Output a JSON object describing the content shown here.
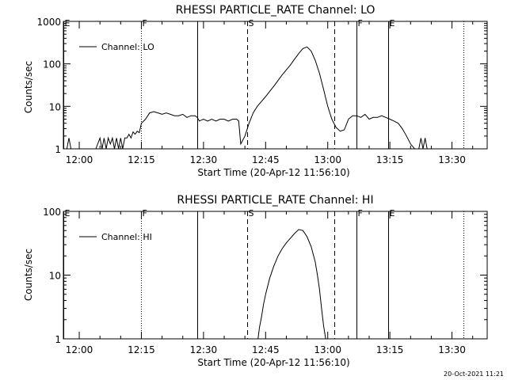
{
  "timestamp": "20-Oct-2021 11:21",
  "chart_data": [
    {
      "type": "line",
      "title": "RHESSI PARTICLE_RATE Channel: LO",
      "xlabel": "Start Time (20-Apr-12 11:56:10)",
      "ylabel": "Counts/sec",
      "y_scale": "log",
      "ylim": [
        1,
        1000
      ],
      "xlim": [
        "11:56:10",
        "13:38:30"
      ],
      "x_ticks": [
        "12:00",
        "12:15",
        "12:30",
        "12:45",
        "13:00",
        "13:15",
        "13:30"
      ],
      "y_ticks": [
        "1",
        "10",
        "100",
        "1000"
      ],
      "legend": {
        "position": "top-left",
        "entries": [
          "Channel: LO"
        ]
      },
      "markers": [
        {
          "label": "E",
          "time": "11:56:10",
          "style": "solid"
        },
        {
          "label": "F",
          "time": "12:14:50",
          "style": "dotted"
        },
        {
          "label": "",
          "time": "12:28:30",
          "style": "solid"
        },
        {
          "label": "S",
          "time": "12:40:30",
          "style": "dashed"
        },
        {
          "label": "",
          "time": "13:01:30",
          "style": "dashed"
        },
        {
          "label": "F",
          "time": "13:07:00",
          "style": "solid"
        },
        {
          "label": "E",
          "time": "13:14:30",
          "style": "solid"
        },
        {
          "label": "",
          "time": "13:32:40",
          "style": "dotted"
        }
      ],
      "series": [
        {
          "name": "Channel: LO",
          "x": [
            "11:56:10",
            "11:57:00",
            "11:57:30",
            "11:58:00",
            "11:59:00",
            "11:59:30",
            "12:00:00",
            "12:01:00",
            "12:02:00",
            "12:02:30",
            "12:03:00",
            "12:03:30",
            "12:04:00",
            "12:05:00",
            "12:05:30",
            "12:06:00",
            "12:06:30",
            "12:07:00",
            "12:07:30",
            "12:08:00",
            "12:08:30",
            "12:09:00",
            "12:09:30",
            "12:10:00",
            "12:10:30",
            "12:11:00",
            "12:11:30",
            "12:12:00",
            "12:12:30",
            "12:13:00",
            "12:13:30",
            "12:14:00",
            "12:14:30",
            "12:15:00",
            "12:16:00",
            "12:17:00",
            "12:18:00",
            "12:19:00",
            "12:20:00",
            "12:21:00",
            "12:22:00",
            "12:23:00",
            "12:24:00",
            "12:25:00",
            "12:26:00",
            "12:27:00",
            "12:28:00",
            "12:28:30",
            "12:29:00",
            "12:30:00",
            "12:31:00",
            "12:32:00",
            "12:33:00",
            "12:34:00",
            "12:35:00",
            "12:36:00",
            "12:37:00",
            "12:38:00",
            "12:38:30",
            "12:39:00",
            "12:40:00",
            "12:41:00",
            "12:42:00",
            "12:43:00",
            "12:45:00",
            "12:47:00",
            "12:49:00",
            "12:51:00",
            "12:52:00",
            "12:53:00",
            "12:54:00",
            "12:55:00",
            "12:56:00",
            "12:57:00",
            "12:58:00",
            "12:59:00",
            "13:00:00",
            "13:01:00",
            "13:02:00",
            "13:03:00",
            "13:04:00",
            "13:05:00",
            "13:06:00",
            "13:07:00",
            "13:08:00",
            "13:09:00",
            "13:10:00",
            "13:11:00",
            "13:12:00",
            "13:13:00",
            "13:14:00",
            "13:15:00",
            "13:16:00",
            "13:17:00",
            "13:18:00",
            "13:19:00",
            "13:20:00",
            "13:21:00",
            "13:21:30",
            "13:22:00",
            "13:22:30",
            "13:23:00",
            "13:23:30",
            "13:24:00"
          ],
          "values": [
            1,
            1,
            1.8,
            1,
            1,
            1,
            1,
            1,
            1,
            1,
            1,
            1,
            1,
            1.8,
            1,
            1.8,
            1,
            1.8,
            1.3,
            1.8,
            1,
            1.8,
            1,
            1.8,
            1,
            1.8,
            1.8,
            2.2,
            1.8,
            2.5,
            2.2,
            2.6,
            2.4,
            4,
            5,
            7,
            7.5,
            7,
            6.5,
            7,
            6.5,
            6,
            6,
            6.5,
            5.5,
            6,
            6,
            5.5,
            4.5,
            5,
            4.5,
            5,
            4.5,
            5,
            5,
            4.5,
            5,
            5,
            4.5,
            1.3,
            2,
            4,
            7,
            10,
            17,
            30,
            55,
            95,
            130,
            175,
            230,
            250,
            200,
            120,
            60,
            25,
            10,
            5,
            3.2,
            2.6,
            2.8,
            5,
            6,
            6,
            5.5,
            6.5,
            5,
            5.5,
            5.5,
            6,
            5.5,
            5,
            4.5,
            4,
            3,
            2,
            1.3,
            1,
            1,
            1,
            1.8,
            1,
            1.8,
            1
          ]
        }
      ]
    },
    {
      "type": "line",
      "title": "RHESSI PARTICLE_RATE Channel: HI",
      "xlabel": "Start Time (20-Apr-12 11:56:10)",
      "ylabel": "Counts/sec",
      "y_scale": "log",
      "ylim": [
        1,
        100
      ],
      "xlim": [
        "11:56:10",
        "13:38:30"
      ],
      "x_ticks": [
        "12:00",
        "12:15",
        "12:30",
        "12:45",
        "13:00",
        "13:15",
        "13:30"
      ],
      "y_ticks": [
        "1",
        "10",
        "100"
      ],
      "legend": {
        "position": "top-left",
        "entries": [
          "Channel: HI"
        ]
      },
      "markers": [
        {
          "label": "E",
          "time": "11:56:10",
          "style": "solid"
        },
        {
          "label": "F",
          "time": "12:14:50",
          "style": "dotted"
        },
        {
          "label": "",
          "time": "12:28:30",
          "style": "solid"
        },
        {
          "label": "S",
          "time": "12:40:30",
          "style": "dashed"
        },
        {
          "label": "",
          "time": "13:01:30",
          "style": "dashed"
        },
        {
          "label": "F",
          "time": "13:07:00",
          "style": "solid"
        },
        {
          "label": "E",
          "time": "13:14:30",
          "style": "solid"
        },
        {
          "label": "",
          "time": "13:32:40",
          "style": "dotted"
        }
      ],
      "series": [
        {
          "name": "Channel: HI",
          "x": [
            "12:43:10",
            "12:43:30",
            "12:44:00",
            "12:44:30",
            "12:45:00",
            "12:46:00",
            "12:47:00",
            "12:48:00",
            "12:49:00",
            "12:50:00",
            "12:51:00",
            "12:52:00",
            "12:53:00",
            "12:54:00",
            "12:55:00",
            "12:56:00",
            "12:57:00",
            "12:57:30",
            "12:58:00",
            "12:58:30",
            "12:59:00",
            "12:59:30"
          ],
          "values": [
            1,
            1.5,
            2.2,
            3.5,
            5,
            9,
            14,
            20,
            26,
            32,
            38,
            45,
            52,
            50,
            40,
            28,
            16,
            10,
            6,
            3,
            1.6,
            1
          ]
        }
      ]
    }
  ]
}
